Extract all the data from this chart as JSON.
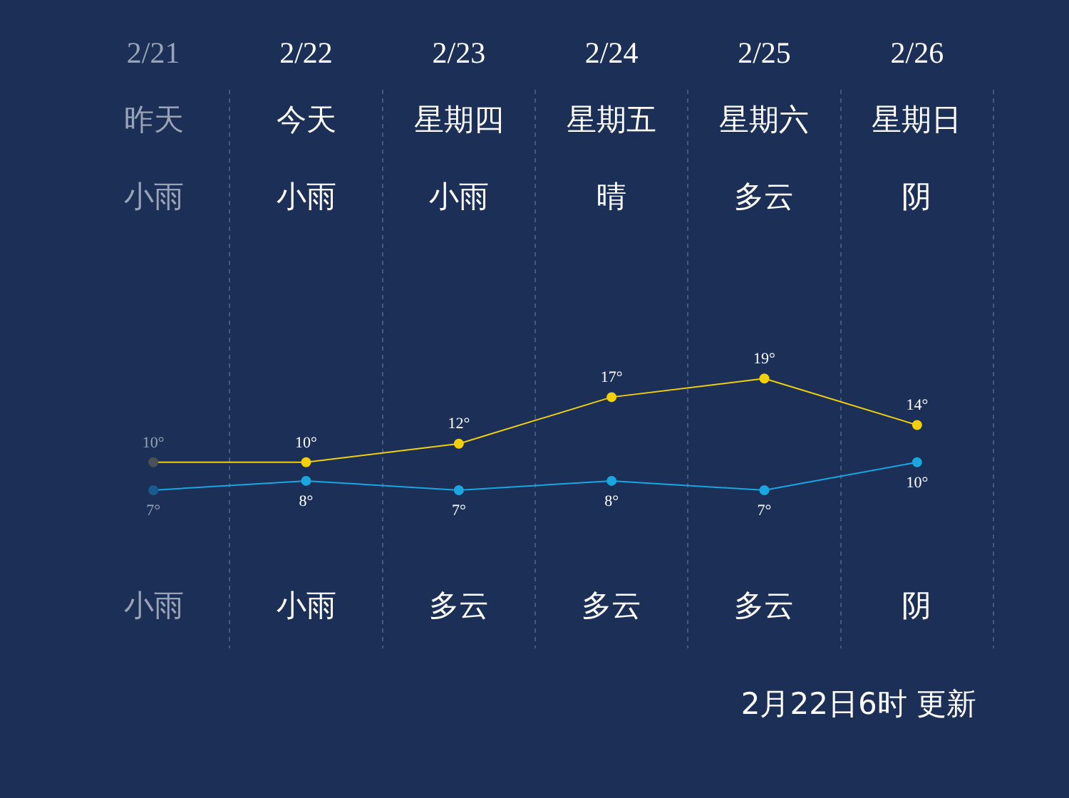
{
  "chart_data": {
    "type": "line",
    "categories": [
      "2/21",
      "2/22",
      "2/23",
      "2/24",
      "2/25",
      "2/26"
    ],
    "series": [
      {
        "color": "#f2d00c",
        "colors": [
          "#4b5158",
          "#f2d00c",
          "#f2d00c",
          "#f2d00c",
          "#f2d00c",
          "#f2d00c"
        ],
        "values": [
          10,
          10,
          12,
          17,
          19,
          14
        ],
        "value_labels": [
          "10°",
          "10°",
          "12°",
          "17°",
          "19°",
          "14°"
        ]
      },
      {
        "color": "#1aa7e0",
        "colors": [
          "#1b5a8e",
          "#1aa7e0",
          "#1aa7e0",
          "#1aa7e0",
          "#1aa7e0",
          "#1aa7e0"
        ],
        "values": [
          7,
          8,
          7,
          8,
          7,
          10
        ],
        "value_labels": [
          "7°",
          "8°",
          "7°",
          "8°",
          "7°",
          "10°"
        ]
      }
    ],
    "annotations": [
      "昨天",
      "今天",
      "星期四",
      "星期五",
      "星期六",
      "星期日",
      "小雨",
      "小雨",
      "小雨",
      "晴",
      "多云",
      "阴",
      "小雨",
      "小雨",
      "多云",
      "多云",
      "多云",
      "阴",
      "2月22日6时 更新"
    ],
    "grid": "x",
    "legend": false,
    "marker": "circle",
    "line_style": "solid"
  }
}
